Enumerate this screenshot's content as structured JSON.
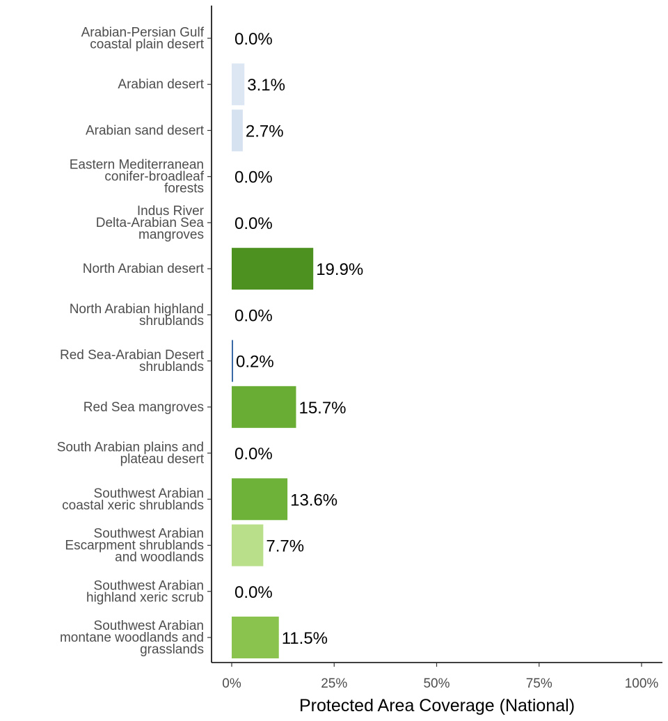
{
  "chart_data": {
    "type": "bar",
    "orientation": "horizontal",
    "xlabel": "Protected Area Coverage (National)",
    "ylabel": "",
    "xlim": [
      0,
      100
    ],
    "x_ticks": [
      0,
      25,
      50,
      75,
      100
    ],
    "x_tick_labels": [
      "0%",
      "25%",
      "50%",
      "75%",
      "100%"
    ],
    "grid": false,
    "legend": "none",
    "categories": [
      [
        "Arabian-Persian Gulf",
        "coastal plain desert"
      ],
      [
        "Arabian desert"
      ],
      [
        "Arabian sand desert"
      ],
      [
        "Eastern Mediterranean",
        "conifer-broadleaf",
        "forests"
      ],
      [
        "Indus River",
        "Delta-Arabian Sea",
        "mangroves"
      ],
      [
        "North Arabian desert"
      ],
      [
        "North Arabian highland",
        "shrublands"
      ],
      [
        "Red Sea-Arabian Desert",
        "shrublands"
      ],
      [
        "Red Sea mangroves"
      ],
      [
        "South Arabian plains and",
        "plateau desert"
      ],
      [
        "Southwest Arabian",
        "coastal xeric shrublands"
      ],
      [
        "Southwest Arabian",
        "Escarpment shrublands",
        "and woodlands"
      ],
      [
        "Southwest Arabian",
        "highland xeric scrub"
      ],
      [
        "Southwest Arabian",
        "montane woodlands and",
        "grasslands"
      ]
    ],
    "values": [
      0.0,
      3.1,
      2.7,
      0.0,
      0.0,
      19.9,
      0.0,
      0.2,
      15.7,
      0.0,
      13.6,
      7.7,
      0.0,
      11.5
    ],
    "value_labels": [
      "0.0%",
      "3.1%",
      "2.7%",
      "0.0%",
      "0.0%",
      "19.9%",
      "0.0%",
      "0.2%",
      "15.7%",
      "0.0%",
      "13.6%",
      "7.7%",
      "0.0%",
      "11.5%"
    ],
    "bar_colors": [
      "#d4e1f3",
      "#dde7f3",
      "#d6e2f0",
      "#d4e1f3",
      "#d4e1f3",
      "#4d9221",
      "#d4e1f3",
      "#3a6aa6",
      "#6aad34",
      "#d4e1f3",
      "#6eb23a",
      "#b9df8a",
      "#d4e1f3",
      "#8bc34f"
    ]
  }
}
